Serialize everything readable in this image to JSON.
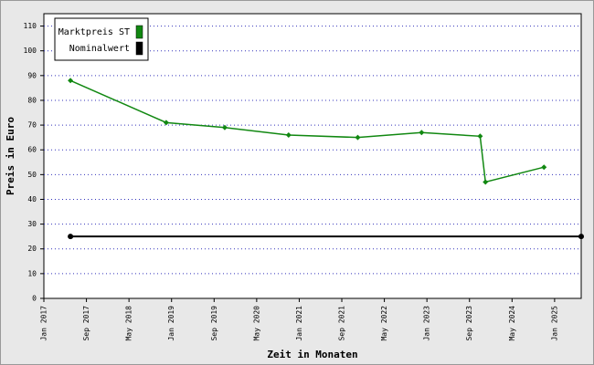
{
  "chart_data": {
    "type": "line",
    "xlabel": "Zeit in Monaten",
    "ylabel": "Preis in Euro",
    "series": [
      {
        "name": "Marktpreis ST",
        "color": "#118811",
        "x": [
          "2017-06",
          "2018-12",
          "2019-11",
          "2020-11",
          "2021-12",
          "2022-12",
          "2023-11",
          "2023-12",
          "2024-11"
        ],
        "values": [
          88,
          71,
          69,
          66,
          65,
          67,
          65.5,
          47,
          53
        ]
      },
      {
        "name": "Nominalwert",
        "color": "#000000",
        "x": [
          "2017-06",
          "2025-06"
        ],
        "values": [
          25,
          25
        ]
      }
    ],
    "xlim": [
      "2017-01",
      "2025-06"
    ],
    "xticks": [
      {
        "value": "2017-01",
        "label": "Jan 2017"
      },
      {
        "value": "2017-09",
        "label": "Sep 2017"
      },
      {
        "value": "2018-05",
        "label": "May 2018"
      },
      {
        "value": "2019-01",
        "label": "Jan 2019"
      },
      {
        "value": "2019-09",
        "label": "Sep 2019"
      },
      {
        "value": "2020-05",
        "label": "May 2020"
      },
      {
        "value": "2021-01",
        "label": "Jan 2021"
      },
      {
        "value": "2021-09",
        "label": "Sep 2021"
      },
      {
        "value": "2022-05",
        "label": "May 2022"
      },
      {
        "value": "2023-01",
        "label": "Jan 2023"
      },
      {
        "value": "2023-09",
        "label": "Sep 2023"
      },
      {
        "value": "2024-05",
        "label": "May 2024"
      },
      {
        "value": "2025-01",
        "label": "Jan 2025"
      }
    ],
    "ylim": [
      0,
      115
    ],
    "yticks": [
      0,
      10,
      20,
      30,
      40,
      50,
      60,
      70,
      80,
      90,
      100,
      110
    ],
    "grid": true,
    "legend": "top-left"
  }
}
